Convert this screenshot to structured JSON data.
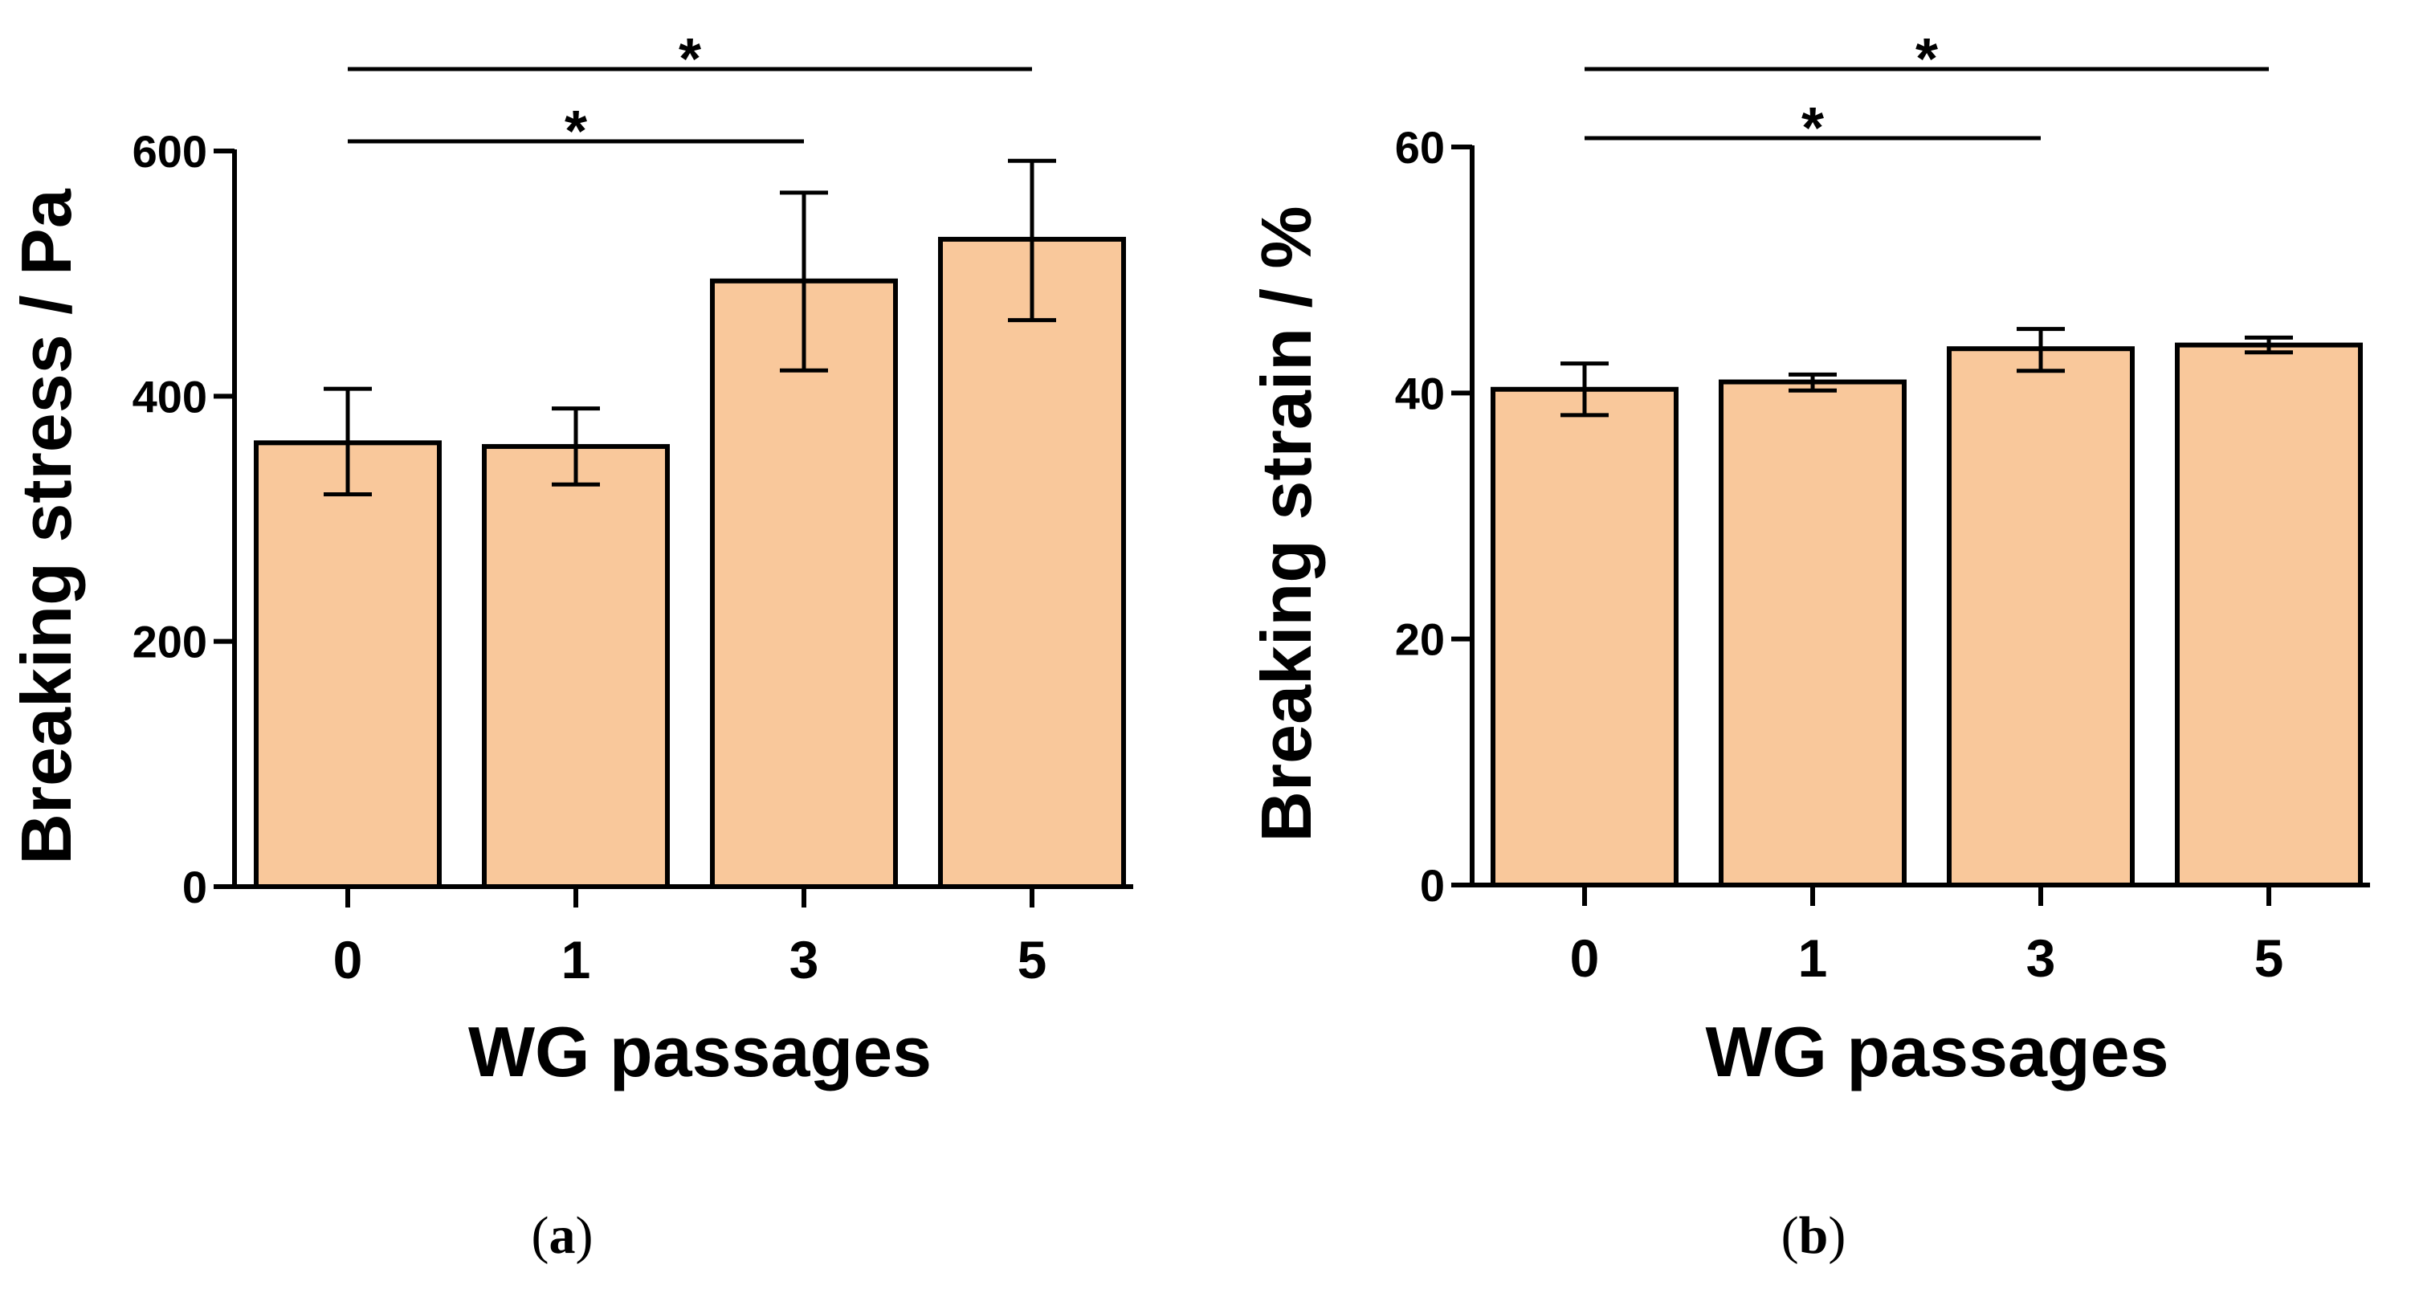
{
  "chart_data": [
    {
      "type": "bar",
      "panel_label_open": "(",
      "panel_label": "a",
      "panel_label_close": ")",
      "xlabel": "WG passages",
      "ylabel": "Breaking stress / Pa",
      "categories": [
        "0",
        "1",
        "3",
        "5"
      ],
      "values": [
        362,
        359,
        494,
        528
      ],
      "errors": [
        {
          "low": 320,
          "high": 406
        },
        {
          "low": 328,
          "high": 390
        },
        {
          "low": 421,
          "high": 566
        },
        {
          "low": 462,
          "high": 592
        }
      ],
      "ylim": [
        0,
        600
      ],
      "yticks": [
        0,
        200,
        400,
        600
      ],
      "significance": [
        {
          "from": "0",
          "to": "3",
          "label": "*"
        },
        {
          "from": "0",
          "to": "5",
          "label": "*"
        }
      ],
      "bar_color": "#F9C89B"
    },
    {
      "type": "bar",
      "panel_label_open": "(",
      "panel_label": "b",
      "panel_label_close": ")",
      "xlabel": "WG passages",
      "ylabel": "Breaking strain / %",
      "categories": [
        "0",
        "1",
        "3",
        "5"
      ],
      "values": [
        40.3,
        40.9,
        43.6,
        43.9
      ],
      "errors": [
        {
          "low": 38.2,
          "high": 42.4
        },
        {
          "low": 40.2,
          "high": 41.5
        },
        {
          "low": 41.8,
          "high": 45.2
        },
        {
          "low": 43.3,
          "high": 44.5
        }
      ],
      "ylim": [
        0,
        60
      ],
      "yticks": [
        0,
        20,
        40,
        60
      ],
      "significance": [
        {
          "from": "0",
          "to": "3",
          "label": "*"
        },
        {
          "from": "0",
          "to": "5",
          "label": "*"
        }
      ],
      "bar_color": "#F9C89B"
    }
  ]
}
